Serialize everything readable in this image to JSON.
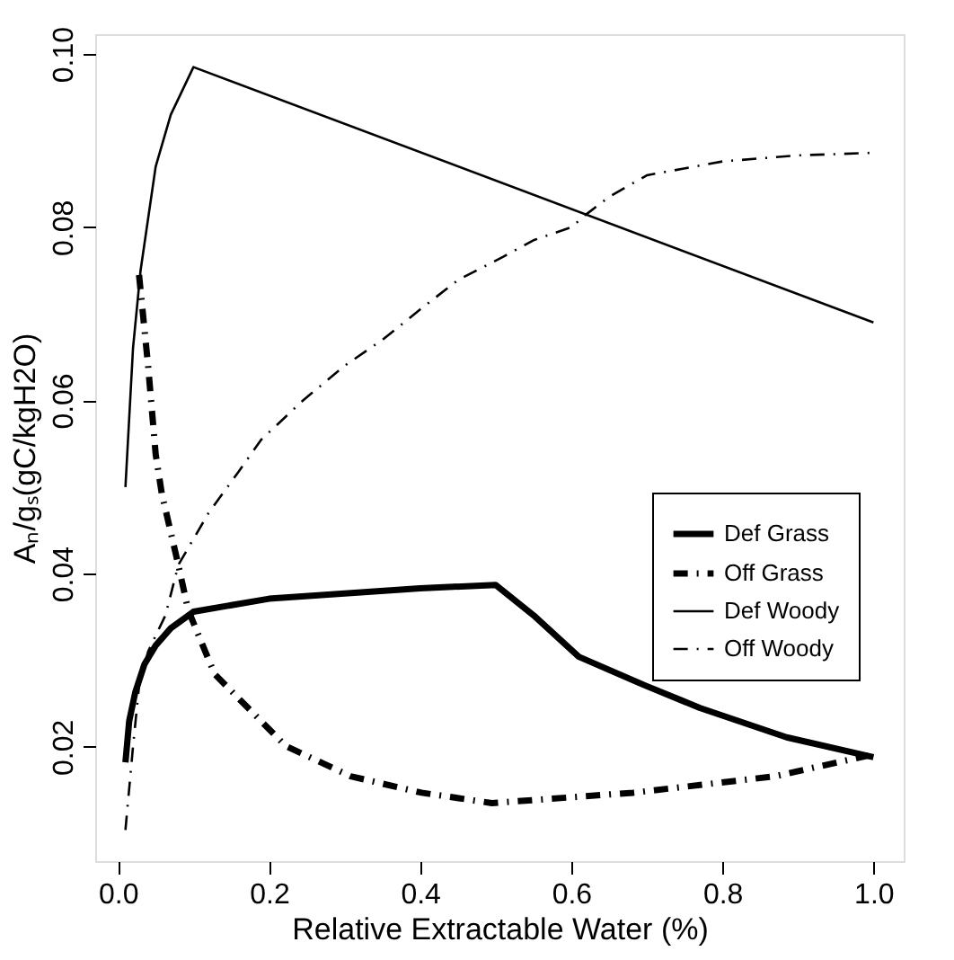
{
  "chart_data": {
    "type": "line",
    "xlabel": "Relative Extractable Water (%)",
    "ylabel": "Aₙ/gₛ(gC/kgH2O)",
    "xlim": [
      -0.03,
      1.04
    ],
    "ylim": [
      0.0068,
      0.1023
    ],
    "xticks": [
      {
        "value": 0,
        "label": "0.0"
      },
      0.2,
      0.4,
      0.6,
      0.8,
      {
        "value": 1,
        "label": "1.0"
      }
    ],
    "yticks": [
      0.02,
      0.04,
      0.06,
      0.08,
      {
        "value": 0.1,
        "label": "0.10"
      }
    ],
    "grid": false,
    "legend": "right",
    "marker": "none",
    "series": [
      {
        "name": "Def Grass",
        "color": "#000000",
        "line_style": "solid",
        "x": [
          0.01,
          0.015,
          0.023,
          0.035,
          0.05,
          0.07,
          0.1,
          0.2,
          0.3,
          0.4,
          0.5,
          0.55,
          0.61,
          0.7,
          0.77,
          0.885,
          1.0
        ],
        "values": [
          0.0182,
          0.023,
          0.0263,
          0.0295,
          0.0317,
          0.0337,
          0.0356,
          0.0371,
          0.0377,
          0.0383,
          0.0387,
          0.0352,
          0.0304,
          0.027,
          0.0245,
          0.0211,
          0.0188
        ]
      },
      {
        "name": "Off Grass",
        "color": "#000000",
        "line_style": "dashed",
        "x": [
          0.028,
          0.04,
          0.05,
          0.058,
          0.08,
          0.093,
          0.128,
          0.222,
          0.308,
          0.402,
          0.495,
          0.682,
          0.87,
          0.993
        ],
        "values": [
          0.0745,
          0.064,
          0.0538,
          0.0493,
          0.041,
          0.0358,
          0.0284,
          0.0201,
          0.0166,
          0.0147,
          0.0135,
          0.0147,
          0.0166,
          0.019
        ]
      },
      {
        "name": "Def Woody",
        "color": "#000000",
        "line_style": "solid",
        "x": [
          0.01,
          0.02,
          0.03,
          0.05,
          0.07,
          0.1,
          1.0
        ],
        "values": [
          0.05,
          0.066,
          0.075,
          0.087,
          0.093,
          0.0985,
          0.069
        ]
      },
      {
        "name": "Off Woody",
        "color": "#000000",
        "line_style": "dashed",
        "x": [
          0.01,
          0.02,
          0.028,
          0.04,
          0.063,
          0.08,
          0.12,
          0.16,
          0.19,
          0.245,
          0.3,
          0.35,
          0.4,
          0.45,
          0.51,
          0.55,
          0.6,
          0.62,
          0.65,
          0.7,
          0.8,
          0.9,
          1.0
        ],
        "values": [
          0.0104,
          0.02,
          0.027,
          0.031,
          0.0352,
          0.041,
          0.047,
          0.0518,
          0.0555,
          0.06,
          0.064,
          0.067,
          0.0705,
          0.0739,
          0.0766,
          0.0785,
          0.08,
          0.0815,
          0.0835,
          0.086,
          0.0876,
          0.0883,
          0.0886
        ]
      }
    ]
  }
}
